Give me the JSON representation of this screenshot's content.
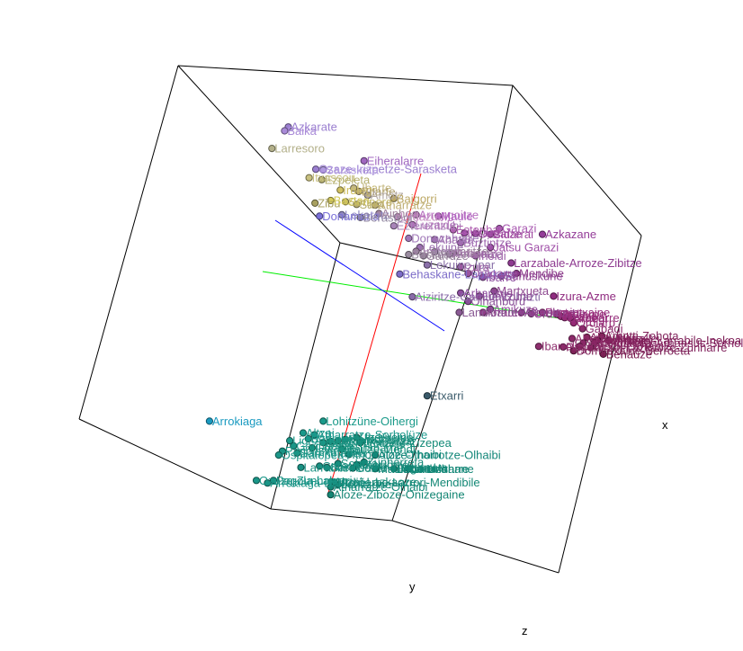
{
  "chart_data": {
    "type": "scatter",
    "projection": "3d",
    "title": "",
    "axes": {
      "x": "x",
      "y": "y",
      "z": "z"
    },
    "grid": false,
    "legend": "none",
    "note": "3D scatter of place names; positions given in projected data units (0-100 horizontal, 0-100 vertical)",
    "points": [
      {
        "label": "Azkarate",
        "u": 38.8,
        "v": 19.5,
        "color": "#9b7fd0"
      },
      {
        "label": "Baika",
        "u": 38.3,
        "v": 20.1,
        "color": "#a98ad8"
      },
      {
        "label": "Larresoro",
        "u": 36.6,
        "v": 22.8,
        "color": "#b3b08a"
      },
      {
        "label": "Eiheralarre",
        "u": 49.0,
        "v": 24.7,
        "color": "#a067c0"
      },
      {
        "label": "Ozaze-Irizpetze-Sarasketa",
        "u": 42.5,
        "v": 26.0,
        "color": "#9b7fd0"
      },
      {
        "label": "Sarasketa",
        "u": 43.5,
        "v": 26.1,
        "color": "#b19ae0"
      },
      {
        "label": "Itxassou",
        "u": 41.6,
        "v": 27.3,
        "color": "#c8c080"
      },
      {
        "label": "Ezpeleta",
        "u": 43.3,
        "v": 27.6,
        "color": "#b6b070"
      },
      {
        "label": "Uharte",
        "u": 47.6,
        "v": 28.9,
        "color": "#c4b880"
      },
      {
        "label": "Irulegi",
        "u": 45.8,
        "v": 29.2,
        "color": "#d0c060"
      },
      {
        "label": "Bitarte",
        "u": 48.3,
        "v": 29.4,
        "color": "#b0a070"
      },
      {
        "label": "Amotz",
        "u": 49.5,
        "v": 30.0,
        "color": "#b0a6a0"
      },
      {
        "label": "Zibu",
        "u": 42.4,
        "v": 31.2,
        "color": "#a8a060"
      },
      {
        "label": "Baztan",
        "u": 44.5,
        "v": 30.8,
        "color": "#d6cc58"
      },
      {
        "label": "Senpere",
        "u": 46.5,
        "v": 31.0,
        "color": "#c2b660"
      },
      {
        "label": "Sara",
        "u": 48.0,
        "v": 31.4,
        "color": "#b8ae70"
      },
      {
        "label": "Atharratze",
        "u": 50.5,
        "v": 31.5,
        "color": "#c0b074"
      },
      {
        "label": "Baigorri",
        "u": 53.0,
        "v": 30.5,
        "color": "#bca864"
      },
      {
        "label": "Donamaria",
        "u": 43.0,
        "v": 33.2,
        "color": "#7a70d8"
      },
      {
        "label": "Lekarotz",
        "u": 46.0,
        "v": 33.0,
        "color": "#8e86c0"
      },
      {
        "label": "Berastegi",
        "u": 48.5,
        "v": 33.4,
        "color": "#9086a0"
      },
      {
        "label": "Ainhoa",
        "u": 51.0,
        "v": 32.8,
        "color": "#a486a0"
      },
      {
        "label": "Urdazubi",
        "u": 53.5,
        "v": 33.3,
        "color": "#c48cc0"
      },
      {
        "label": "Arrangoitze",
        "u": 56.0,
        "v": 33.0,
        "color": "#b872c0"
      },
      {
        "label": "Maule",
        "u": 59.0,
        "v": 33.2,
        "color": "#b060c0"
      },
      {
        "label": "Ezterentzubi",
        "u": 53.0,
        "v": 34.7,
        "color": "#a884b8"
      },
      {
        "label": "Luzaide",
        "u": 55.5,
        "v": 34.5,
        "color": "#b070b8"
      },
      {
        "label": "Garazi",
        "u": 67.2,
        "v": 35.1,
        "color": "#a858b0"
      },
      {
        "label": "Esteribar",
        "u": 61.0,
        "v": 35.3,
        "color": "#b060b0"
      },
      {
        "label": "Irisarri",
        "u": 62.5,
        "v": 35.8,
        "color": "#a04ea8"
      },
      {
        "label": "Ortzaize",
        "u": 64.0,
        "v": 35.9,
        "color": "#9a489e"
      },
      {
        "label": "Bidarrai",
        "u": 66.0,
        "v": 36.0,
        "color": "#a04aa0"
      },
      {
        "label": "Azkazane",
        "u": 73.0,
        "v": 36.0,
        "color": "#943c98"
      },
      {
        "label": "Donazaharre",
        "u": 55.0,
        "v": 36.6,
        "color": "#a078b8"
      },
      {
        "label": "Ahatsa",
        "u": 58.5,
        "v": 36.8,
        "color": "#a070b0"
      },
      {
        "label": "Buztintze",
        "u": 62.0,
        "v": 37.3,
        "color": "#a068b0"
      },
      {
        "label": "Lekuine",
        "u": 56.5,
        "v": 38.0,
        "color": "#9c70b0"
      },
      {
        "label": "Jatsu Garazi",
        "u": 66.0,
        "v": 38.0,
        "color": "#a050a8"
      },
      {
        "label": "Armendaritze",
        "u": 56.0,
        "v": 38.6,
        "color": "#9a7c9e"
      },
      {
        "label": "Lasa",
        "u": 58.5,
        "v": 38.7,
        "color": "#a48ab0"
      },
      {
        "label": "Arbona",
        "u": 61.0,
        "v": 38.9,
        "color": "#a078a0"
      },
      {
        "label": "Bastida",
        "u": 55.0,
        "v": 39.1,
        "color": "#9a8ca0"
      },
      {
        "label": "Garruze",
        "u": 57.0,
        "v": 39.3,
        "color": "#947e98"
      },
      {
        "label": "Amorotze",
        "u": 60.5,
        "v": 39.0,
        "color": "#a074a8"
      },
      {
        "label": "Iholdi",
        "u": 64.0,
        "v": 39.3,
        "color": "#9c60a8"
      },
      {
        "label": "Larzabale-Arroze-Zibitze",
        "u": 68.8,
        "v": 40.4,
        "color": "#8e3a90"
      },
      {
        "label": "Lekuine-Ipar",
        "u": 57.5,
        "v": 40.7,
        "color": "#8a70a8"
      },
      {
        "label": "Behaskane-Lapizketa",
        "u": 53.8,
        "v": 42.1,
        "color": "#7c6cc8"
      },
      {
        "label": "Izura",
        "u": 62.0,
        "v": 41.0,
        "color": "#9a5aa0"
      },
      {
        "label": "Oragarre",
        "u": 63.0,
        "v": 42.0,
        "color": "#9a54a0"
      },
      {
        "label": "Mendibe",
        "u": 69.5,
        "v": 42.0,
        "color": "#8a3888"
      },
      {
        "label": "Suhuskune",
        "u": 67.5,
        "v": 42.4,
        "color": "#8c4090"
      },
      {
        "label": "Ibarre",
        "u": 65.0,
        "v": 42.6,
        "color": "#8e4ea0"
      },
      {
        "label": "Aiziritze-Gamue-Zohazti",
        "u": 55.5,
        "v": 45.6,
        "color": "#8a6ca8"
      },
      {
        "label": "Arhansus",
        "u": 62.0,
        "v": 45.0,
        "color": "#8e4ea0"
      },
      {
        "label": "Martxueta",
        "u": 66.5,
        "v": 44.7,
        "color": "#8e4890"
      },
      {
        "label": "Lohitzune",
        "u": 64.5,
        "v": 45.5,
        "color": "#8a4a94"
      },
      {
        "label": "Izura-Azme",
        "u": 74.5,
        "v": 45.5,
        "color": "#902c80"
      },
      {
        "label": "Oihanburu",
        "u": 63.0,
        "v": 46.3,
        "color": "#8a5298"
      },
      {
        "label": "Amikuze",
        "u": 66.0,
        "v": 47.5,
        "color": "#8c4898"
      },
      {
        "label": "Arraute-Sarrikota",
        "u": 65.0,
        "v": 48.0,
        "color": "#903c88"
      },
      {
        "label": "Landibarre",
        "u": 61.8,
        "v": 48.0,
        "color": "#8a5a94"
      },
      {
        "label": "Domintxaine",
        "u": 73.0,
        "v": 48.0,
        "color": "#983080"
      },
      {
        "label": "Urdiñarbe",
        "u": 71.5,
        "v": 48.2,
        "color": "#8e3c8a"
      },
      {
        "label": "Ordiarpe",
        "u": 75.0,
        "v": 48.3,
        "color": "#982c78"
      },
      {
        "label": "Arrasa",
        "u": 70.2,
        "v": 48.0,
        "color": "#8a4890"
      },
      {
        "label": "Ozaze",
        "u": 75.5,
        "v": 48.6,
        "color": "#9a2a78"
      },
      {
        "label": "Ostabarre",
        "u": 76.0,
        "v": 48.8,
        "color": "#962e7c"
      },
      {
        "label": "Arnegi",
        "u": 76.8,
        "v": 48.9,
        "color": "#942c7a"
      },
      {
        "label": "Ordiarp",
        "u": 77.2,
        "v": 49.6,
        "color": "#962a76"
      },
      {
        "label": "Gabadi",
        "u": 78.4,
        "v": 50.5,
        "color": "#8c2a6c"
      },
      {
        "label": "Arbotti-Zohota",
        "u": 81.0,
        "v": 51.6,
        "color": "#82245c"
      },
      {
        "label": "Altzürükü",
        "u": 79.0,
        "v": 51.8,
        "color": "#88265e"
      },
      {
        "label": "Ahetze-Ibarrolle",
        "u": 77.0,
        "v": 52.0,
        "color": "#8c2a6a"
      },
      {
        "label": "Ainharbe",
        "u": 80.4,
        "v": 52.3,
        "color": "#862460"
      },
      {
        "label": "Sarrikotapea-Arhansus-Sorholüze-Ithorrotze-Olhaibi",
        "u": 78.5,
        "v": 52.7,
        "color": "#8a2866"
      },
      {
        "label": "Mendikota",
        "u": 80.0,
        "v": 52.6,
        "color": "#84225e"
      },
      {
        "label": "Urrustoi-Larrabile-Inekoa",
        "u": 82.0,
        "v": 52.3,
        "color": "#7e2058"
      },
      {
        "label": "Ibarrolle",
        "u": 72.5,
        "v": 53.2,
        "color": "#8e2e6e"
      },
      {
        "label": "Urrustoi-Larrabile",
        "u": 78.0,
        "v": 53.2,
        "color": "#8a2a66"
      },
      {
        "label": "Altzai-Lazkaoze-Zünharre",
        "u": 79.5,
        "v": 53.4,
        "color": "#82245e"
      },
      {
        "label": "Pagola",
        "u": 75.8,
        "v": 53.3,
        "color": "#8a2a68"
      },
      {
        "label": "Domintxaine-Berroeta",
        "u": 77.2,
        "v": 53.9,
        "color": "#7e2258"
      },
      {
        "label": "Behauze",
        "u": 81.2,
        "v": 54.4,
        "color": "#7a1e52"
      },
      {
        "label": "Etxarri",
        "u": 57.5,
        "v": 60.8,
        "color": "#3a5a6a"
      },
      {
        "label": "Arrokiaga",
        "u": 28.2,
        "v": 64.7,
        "color": "#1a9ac0"
      },
      {
        "label": "Lohitzüne-Oihergi",
        "u": 43.5,
        "v": 64.7,
        "color": "#1a9a8a"
      },
      {
        "label": "Altzai",
        "u": 40.8,
        "v": 66.5,
        "color": "#1a988a"
      },
      {
        "label": "Atharratze-Sorholüze",
        "u": 42.3,
        "v": 66.8,
        "color": "#1a968a"
      },
      {
        "label": "Undüreine",
        "u": 48.0,
        "v": 67.2,
        "color": "#168c7a"
      },
      {
        "label": "Barkoxe",
        "u": 41.5,
        "v": 67.4,
        "color": "#1a9a8c"
      },
      {
        "label": "Ligi-Atherei",
        "u": 39.0,
        "v": 67.7,
        "color": "#1c988a"
      },
      {
        "label": "Montori",
        "u": 46.5,
        "v": 67.5,
        "color": "#168e7c"
      },
      {
        "label": "Altzürükü-Altzai",
        "u": 44.5,
        "v": 67.8,
        "color": "#168e7c"
      },
      {
        "label": "Urdatx-Zibitze",
        "u": 45.5,
        "v": 67.7,
        "color": "#188e7e"
      },
      {
        "label": "Lakarri",
        "u": 43.5,
        "v": 68.0,
        "color": "#1a927e"
      },
      {
        "label": "Lextarre-Zizepea",
        "u": 48.5,
        "v": 68.0,
        "color": "#148a78"
      },
      {
        "label": "Garindaine",
        "u": 39.5,
        "v": 68.5,
        "color": "#1a9686"
      },
      {
        "label": "Gotaine-Irabarne",
        "u": 42.0,
        "v": 68.8,
        "color": "#18927e"
      },
      {
        "label": "Idauze-Mendi",
        "u": 46.0,
        "v": 69.0,
        "color": "#16907c"
      },
      {
        "label": "Pagola-Arbela",
        "u": 38.0,
        "v": 69.3,
        "color": "#1a9484"
      },
      {
        "label": "Sarrikotapea",
        "u": 40.0,
        "v": 69.6,
        "color": "#1a9484"
      },
      {
        "label": "Ospitalepea",
        "u": 37.5,
        "v": 69.9,
        "color": "#1c9688"
      },
      {
        "label": "Ithorrotze-Olhaibi",
        "u": 47.0,
        "v": 69.8,
        "color": "#12887a"
      },
      {
        "label": "Aloze-Ithorrotze-Olhaibi",
        "u": 50.5,
        "v": 69.9,
        "color": "#128678"
      },
      {
        "label": "Zunharreta",
        "u": 49.0,
        "v": 71.0,
        "color": "#148878"
      },
      {
        "label": "Sohüta",
        "u": 45.5,
        "v": 71.2,
        "color": "#168c7c"
      },
      {
        "label": "Ithorrotze",
        "u": 48.0,
        "v": 71.4,
        "color": "#148a7a"
      },
      {
        "label": "Camou",
        "u": 43.0,
        "v": 71.6,
        "color": "#188e80"
      },
      {
        "label": "Larrabile",
        "u": 40.5,
        "v": 71.8,
        "color": "#189082"
      },
      {
        "label": "Garindaine-Zunharreta",
        "u": 44.0,
        "v": 71.8,
        "color": "#168c7c"
      },
      {
        "label": "Gotaine-Irigarai",
        "u": 47.5,
        "v": 71.9,
        "color": "#148a7a"
      },
      {
        "label": "Mauleon-Licharre",
        "u": 50.5,
        "v": 72.0,
        "color": "#128676"
      },
      {
        "label": "Laruns",
        "u": 55.0,
        "v": 72.0,
        "color": "#108474"
      },
      {
        "label": "Lakarri-Arhane",
        "u": 53.0,
        "v": 72.0,
        "color": "#128676"
      },
      {
        "label": "Pagola-Lakarri",
        "u": 36.8,
        "v": 73.8,
        "color": "#1a9284"
      },
      {
        "label": "Ozaze-Zunharre",
        "u": 34.5,
        "v": 73.8,
        "color": "#1a9688"
      },
      {
        "label": "Altzai-Lazkaoze",
        "u": 44.6,
        "v": 74.0,
        "color": "#168a7a"
      },
      {
        "label": "Lohitzüne",
        "u": 45.5,
        "v": 74.4,
        "color": "#168a7a"
      },
      {
        "label": "Urdiñarbe-Larrori-Mendibile",
        "u": 45.0,
        "v": 74.1,
        "color": "#148876"
      },
      {
        "label": "Arrokiaga-Barkoxe",
        "u": 36.0,
        "v": 74.2,
        "color": "#1a9486"
      },
      {
        "label": "Atharratze-Olhaibi",
        "u": 44.5,
        "v": 74.8,
        "color": "#168a7a"
      },
      {
        "label": "Aloze-Ziboze-Onizegaine",
        "u": 44.5,
        "v": 76.0,
        "color": "#148674"
      }
    ],
    "annotations": [
      {
        "name": "red-axis",
        "color": "#ff0000"
      },
      {
        "name": "green-axis",
        "color": "#00cc00"
      },
      {
        "name": "blue-axis",
        "color": "#0000ff"
      }
    ]
  },
  "axis_labels": {
    "x": "x",
    "y": "y",
    "z": "z"
  }
}
